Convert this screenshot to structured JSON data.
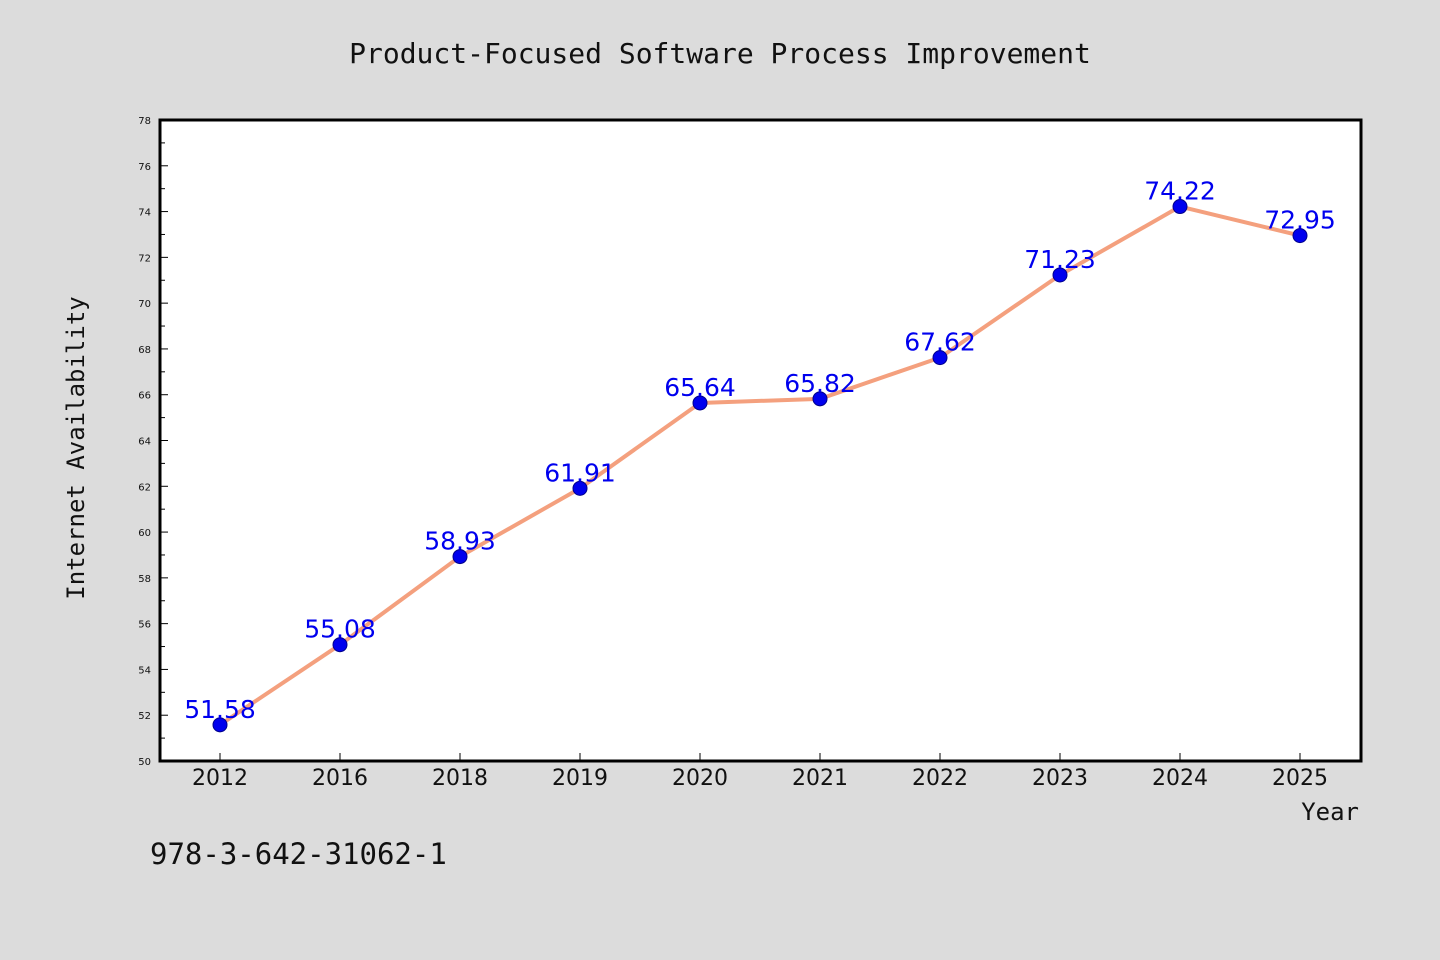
{
  "colors": {
    "background": "#dcdcdc",
    "plot_background": "#ffffff",
    "line": "#f4a07e",
    "marker": "#0000ee",
    "data_label": "#0000ee",
    "axis": "#000000"
  },
  "chart_data": {
    "type": "line",
    "title": "Product-Focused Software Process Improvement",
    "xlabel": "Year",
    "ylabel": "Internet Availability",
    "categories": [
      "2012",
      "2016",
      "2018",
      "2019",
      "2020",
      "2021",
      "2022",
      "2023",
      "2024",
      "2025"
    ],
    "series": [
      {
        "values": [
          51.58,
          55.08,
          58.93,
          61.91,
          65.64,
          65.82,
          67.62,
          71.23,
          74.22,
          72.95
        ]
      }
    ],
    "data_labels": [
      "51.58",
      "55.08",
      "58.93",
      "61.91",
      "65.64",
      "65.82",
      "67.62",
      "71.23",
      "74.22",
      "72.95"
    ],
    "ylim": [
      50,
      78
    ],
    "yticks": [
      "50",
      "52",
      "54",
      "56",
      "58",
      "60",
      "62",
      "64",
      "66",
      "68",
      "70",
      "72",
      "74",
      "76",
      "78"
    ],
    "grid": false,
    "legend": "none"
  },
  "footer": {
    "isbn": "978-3-642-31062-1"
  }
}
